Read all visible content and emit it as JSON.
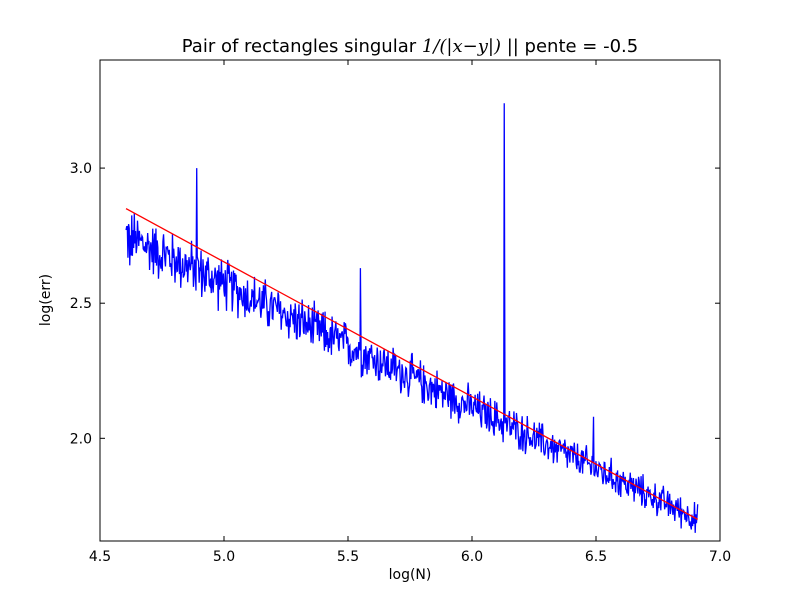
{
  "chart_data": {
    "type": "line",
    "title_prefix": "Pair of rectangles singular ",
    "title_math": "1/(|x−y|)",
    "title_suffix": " || pente = -0.5",
    "xlabel": "log(N)",
    "ylabel": "log(err)",
    "xlim": [
      4.5,
      7.0
    ],
    "ylim": [
      1.62,
      3.4
    ],
    "xticks": [
      "4.5",
      "5.0",
      "5.5",
      "6.0",
      "6.5",
      "7.0"
    ],
    "yticks": [
      "2.0",
      "2.5",
      "3.0"
    ],
    "grid": false,
    "series": [
      {
        "color": "#0000ff",
        "x_range": [
          4.605,
          6.91
        ],
        "noisy_points": 900,
        "trend": {
          "start": [
            4.605,
            2.75
          ],
          "end": [
            6.91,
            1.7
          ]
        },
        "notable_points": [
          {
            "x": 4.62,
            "y": 2.64
          },
          {
            "x": 4.89,
            "y": 3.0
          },
          {
            "x": 5.55,
            "y": 2.63
          },
          {
            "x": 6.13,
            "y": 3.24
          },
          {
            "x": 6.49,
            "y": 2.08
          },
          {
            "x": 6.9,
            "y": 1.65
          }
        ]
      },
      {
        "color": "#ff0000",
        "x": [
          4.605,
          6.91
        ],
        "y": [
          2.85,
          1.7
        ]
      }
    ]
  }
}
